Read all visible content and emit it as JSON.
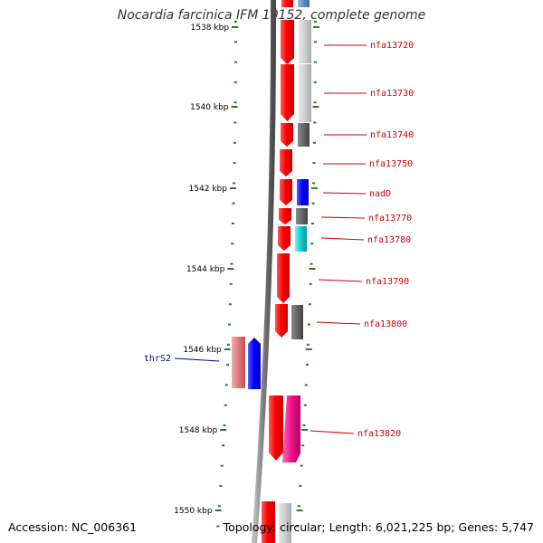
{
  "title": "Nocardia farcinica IFM 10152, complete genome",
  "footer": {
    "accession": "Accession: NC_006361",
    "topology": "Topology: circular; Length: 6,021,225 bp; Genes: 5,747"
  },
  "ticks": [
    {
      "label": "1538 kbp"
    },
    {
      "label": "1540 kbp"
    },
    {
      "label": "1542 kbp"
    },
    {
      "label": "1544 kbp"
    },
    {
      "label": "1546 kbp"
    },
    {
      "label": "1548 kbp"
    },
    {
      "label": "1550 kbp"
    }
  ],
  "genes": [
    {
      "label": "nfa13720",
      "color": "#cc0000"
    },
    {
      "label": "nfa13730",
      "color": "#cc0000"
    },
    {
      "label": "nfa13740",
      "color": "#cc0000"
    },
    {
      "label": "nfa13750",
      "color": "#cc0000"
    },
    {
      "label": "nadD",
      "color": "#cc0000"
    },
    {
      "label": "nfa13770",
      "color": "#cc0000"
    },
    {
      "label": "nfa13780",
      "color": "#cc0000"
    },
    {
      "label": "nfa13790",
      "color": "#cc0000"
    },
    {
      "label": "nfa13800",
      "color": "#cc0000"
    },
    {
      "label": "thrS2",
      "color": "#000099"
    },
    {
      "label": "nfa13820",
      "color": "#cc0000"
    }
  ]
}
